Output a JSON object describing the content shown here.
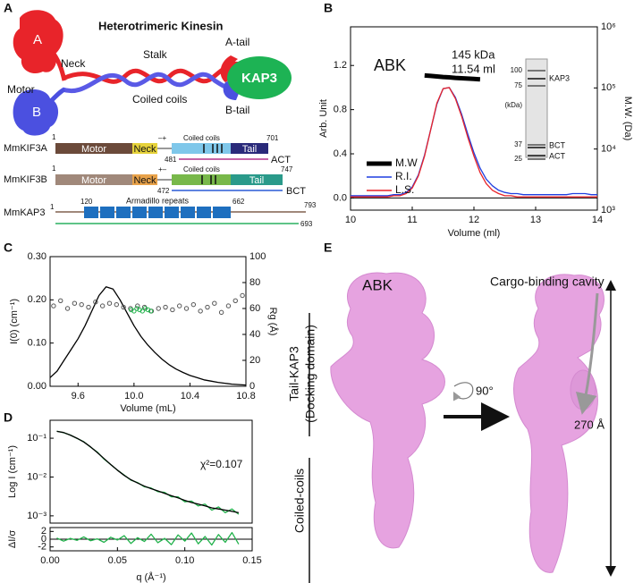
{
  "panel_labels": [
    "A",
    "B",
    "C",
    "D",
    "E"
  ],
  "panel_a": {
    "title": "Heterotrimeric Kinesin",
    "subunit_a": "A",
    "subunit_b": "B",
    "kap3": "KAP3",
    "a_tail": "A-tail",
    "b_tail": "B-tail",
    "motor": "Motor",
    "neck": "Neck",
    "stalk": "Stalk",
    "coiled_coils": "Coiled coils",
    "rows": [
      {
        "name": "MmKIF3A",
        "start": 1,
        "motor": "Motor",
        "neck": "Neck",
        "charge": "–+",
        "coiled": "Coiled coils",
        "tail": "Tail",
        "end": 701,
        "fragment_start": 481,
        "fragment": "ACT"
      },
      {
        "name": "MmKIF3B",
        "start": 1,
        "motor": "Motor",
        "neck": "Neck",
        "charge": "+–",
        "coiled": "Coiled coils",
        "tail": "Tail",
        "end": 747,
        "fragment_start": 472,
        "fragment": "BCT"
      },
      {
        "name": "MmKAP3",
        "start": 1,
        "repeat_start": 120,
        "repeats": "Armadillo repeats",
        "repeat_end": 662,
        "end": 793,
        "fragment_end": 693
      }
    ]
  },
  "gel": {
    "unit": "(kDa)",
    "markers": [
      100,
      75,
      37,
      25
    ],
    "bands": [
      "KAP3",
      "BCT",
      "ACT"
    ]
  },
  "chart_data": [
    {
      "type": "line",
      "x_label": "Volume (ml)",
      "y_label": "Arb. Unit",
      "y2_label": "M.W. (Da)",
      "annotations": [
        "ABK",
        "145 kDa",
        "11.54 ml"
      ],
      "legend": "left",
      "xlim": [
        10,
        14
      ],
      "xticks": [
        10,
        11,
        12,
        13,
        14
      ],
      "ylim": [
        -0.11,
        1.55
      ],
      "yticks": [
        {
          "value": 0,
          "label": "0.0"
        },
        0.4,
        0.8,
        1.2
      ],
      "y2lim": [
        1000,
        1000000
      ],
      "y2log": true,
      "y2ticks": [
        {
          "value": 1000,
          "label": "10³"
        },
        {
          "value": 10000,
          "label": "10⁴"
        },
        {
          "value": 100000,
          "label": "10⁵"
        },
        {
          "value": 1000000,
          "label": "10⁶"
        }
      ],
      "x": [
        10.0,
        10.1,
        10.2,
        10.3,
        10.4,
        10.5,
        10.6,
        10.7,
        10.8,
        10.9,
        11.0,
        11.1,
        11.2,
        11.3,
        11.4,
        11.5,
        11.6,
        11.7,
        11.8,
        11.9,
        12.0,
        12.1,
        12.2,
        12.3,
        12.4,
        12.5,
        12.6,
        12.7,
        12.8,
        12.9,
        13.0,
        13.1,
        13.2,
        13.3,
        13.4,
        13.5,
        13.6,
        13.7,
        13.8,
        13.9,
        14.0
      ],
      "series": [
        {
          "name": "M.W",
          "color": "#000000",
          "axis": "y2",
          "values": [
            null,
            null,
            null,
            null,
            null,
            null,
            null,
            null,
            null,
            null,
            null,
            null,
            160000,
            157000,
            154000,
            151000,
            149000,
            146000,
            144000,
            142000,
            140000,
            138000,
            null,
            null,
            null,
            null,
            null,
            null,
            null,
            null,
            null,
            null,
            null,
            null,
            null,
            null,
            null,
            null,
            null,
            null,
            null
          ]
        },
        {
          "name": "R.I.",
          "color": "#1f3fe0",
          "values": [
            0.02,
            0.02,
            0.02,
            0.02,
            0.02,
            0.02,
            0.02,
            0.03,
            0.03,
            0.05,
            0.1,
            0.21,
            0.39,
            0.62,
            0.85,
            0.99,
            1.0,
            0.91,
            0.76,
            0.58,
            0.41,
            0.27,
            0.17,
            0.11,
            0.07,
            0.05,
            0.04,
            0.04,
            0.03,
            0.03,
            0.03,
            0.03,
            0.03,
            0.03,
            0.03,
            0.03,
            0.04,
            0.04,
            0.04,
            0.03,
            0.03
          ]
        },
        {
          "name": "L.S.",
          "color": "#e8242a",
          "values": [
            0.01,
            0.01,
            0.01,
            0.01,
            0.01,
            0.01,
            0.01,
            0.02,
            0.02,
            0.04,
            0.09,
            0.2,
            0.38,
            0.62,
            0.86,
            0.99,
            1.0,
            0.9,
            0.74,
            0.55,
            0.38,
            0.23,
            0.13,
            0.07,
            0.04,
            0.02,
            0.02,
            0.01,
            0.01,
            0.01,
            0.01,
            0.01,
            0.01,
            0.01,
            0.01,
            0.01,
            0.01,
            0.01,
            0.01,
            0.01,
            0.01
          ]
        }
      ]
    },
    {
      "type": "line",
      "x_label": "Volume (mL)",
      "y_label": "I(0) (cm⁻¹)",
      "y2_label": "Rg (Å)",
      "xlim": [
        9.4,
        10.8
      ],
      "xticks": [
        9.6,
        {
          "value": 10,
          "label": "10.0"
        },
        10.4,
        10.8
      ],
      "ylim": [
        0,
        0.3
      ],
      "yticks": [
        {
          "value": 0,
          "label": "0.00"
        },
        {
          "value": 0.1,
          "label": "0.10"
        },
        {
          "value": 0.2,
          "label": "0.20"
        },
        {
          "value": 0.3,
          "label": "0.30"
        }
      ],
      "y2lim": [
        0,
        100
      ],
      "y2ticks": [
        0,
        20,
        40,
        60,
        80,
        100
      ],
      "x": [
        9.4,
        9.45,
        9.5,
        9.55,
        9.6,
        9.65,
        9.7,
        9.75,
        9.8,
        9.85,
        9.9,
        9.95,
        10.0,
        10.05,
        10.1,
        10.15,
        10.2,
        10.25,
        10.3,
        10.35,
        10.4,
        10.45,
        10.5,
        10.55,
        10.6,
        10.65,
        10.7,
        10.75,
        10.8
      ],
      "series": [
        {
          "color": "#000000",
          "values": [
            0.02,
            0.035,
            0.06,
            0.085,
            0.11,
            0.14,
            0.175,
            0.21,
            0.23,
            0.225,
            0.2,
            0.17,
            0.14,
            0.115,
            0.095,
            0.078,
            0.063,
            0.05,
            0.04,
            0.032,
            0.025,
            0.02,
            0.015,
            0.012,
            0.009,
            0.007,
            0.005,
            0.004,
            0.003
          ]
        },
        {
          "type": "scatter",
          "color": "#555555",
          "axis": "y2",
          "x": [
            9.425,
            9.475,
            9.525,
            9.575,
            9.625,
            9.675,
            9.725,
            9.775,
            9.825,
            9.875,
            9.925,
            9.975,
            10.025,
            10.075,
            10.125,
            10.175,
            10.225,
            10.275,
            10.325,
            10.375,
            10.425,
            10.475,
            10.525,
            10.575,
            10.625,
            10.675,
            10.725,
            10.775
          ],
          "values": [
            62,
            66,
            60,
            64,
            63,
            61,
            65,
            62,
            64,
            63,
            61,
            60,
            62,
            61,
            58,
            60,
            61,
            59,
            62,
            60,
            63,
            58,
            61,
            64,
            57,
            62,
            66,
            70
          ]
        },
        {
          "type": "scatter",
          "color": "#22b24c",
          "axis": "y2",
          "x": [
            9.98,
            10.0,
            10.02,
            10.04,
            10.06,
            10.08,
            10.1,
            10.12
          ],
          "values": [
            59,
            58,
            60,
            59,
            58,
            60,
            59,
            58
          ]
        }
      ]
    },
    {
      "type": "line",
      "y_label": "Log I (cm⁻¹)",
      "annotations": [
        "χ²=0.107"
      ],
      "xlim": [
        0,
        0.15
      ],
      "ylim": [
        0.00065,
        0.29
      ],
      "ylog": true,
      "yticks": [
        {
          "value": 0.1,
          "label": "10⁻¹"
        },
        {
          "value": 0.01,
          "label": "10⁻²"
        },
        {
          "value": 0.001,
          "label": "10⁻³"
        }
      ],
      "x": [
        0.005,
        0.01,
        0.015,
        0.02,
        0.025,
        0.03,
        0.035,
        0.04,
        0.045,
        0.05,
        0.055,
        0.06,
        0.065,
        0.07,
        0.075,
        0.08,
        0.085,
        0.09,
        0.095,
        0.1,
        0.105,
        0.11,
        0.115,
        0.12,
        0.125,
        0.13,
        0.135,
        0.14
      ],
      "series": [
        {
          "color": "#22b24c",
          "values": [
            0.152,
            0.139,
            0.121,
            0.099,
            0.081,
            0.059,
            0.044,
            0.029,
            0.021,
            0.015,
            0.0112,
            0.0083,
            0.0072,
            0.0056,
            0.0052,
            0.0042,
            0.004,
            0.0031,
            0.0031,
            0.0023,
            0.0024,
            0.0018,
            0.002,
            0.0014,
            0.0017,
            0.0012,
            0.0015,
            0.0011
          ]
        },
        {
          "color": "#000000",
          "values": [
            0.15,
            0.14,
            0.12,
            0.1,
            0.08,
            0.06,
            0.043,
            0.03,
            0.021,
            0.015,
            0.011,
            0.0085,
            0.007,
            0.0058,
            0.005,
            0.0044,
            0.0038,
            0.0033,
            0.0029,
            0.0025,
            0.0022,
            0.002,
            0.0018,
            0.0016,
            0.0015,
            0.0014,
            0.0013,
            0.0012
          ]
        }
      ]
    },
    {
      "type": "line",
      "x_label": "q (Å⁻¹)",
      "y_label": "ΔI/σ",
      "xlim": [
        0,
        0.15
      ],
      "xticks": [
        {
          "value": 0,
          "label": "0.00"
        },
        0.05,
        {
          "value": 0.1,
          "label": "0.10"
        },
        0.15
      ],
      "ylim": [
        -3,
        3
      ],
      "yticks": [
        2,
        0,
        -2
      ],
      "x": [
        0.005,
        0.01,
        0.015,
        0.02,
        0.025,
        0.03,
        0.035,
        0.04,
        0.045,
        0.05,
        0.055,
        0.06,
        0.065,
        0.07,
        0.075,
        0.08,
        0.085,
        0.09,
        0.095,
        0.1,
        0.105,
        0.11,
        0.115,
        0.12,
        0.125,
        0.13,
        0.135,
        0.14
      ],
      "series": [
        {
          "color": "#22b24c",
          "values": [
            0.3,
            -0.5,
            0.2,
            -0.3,
            0.6,
            -0.4,
            0.1,
            -0.8,
            0.5,
            -0.2,
            0.9,
            -1.1,
            0.4,
            -0.6,
            1.3,
            -0.9,
            0.2,
            -1.4,
            1.1,
            -0.5,
            1.6,
            -1.2,
            0.7,
            -1.5,
            1.2,
            -0.8,
            1.7,
            -1.3
          ]
        }
      ]
    }
  ],
  "panel_e": {
    "title": "ABK",
    "cavity": "Cargo-binding cavity",
    "docking": "Tail-KAP3",
    "docking_sub": "(Docking domain)",
    "coiled": "Coiled-coils",
    "rotation": "90°",
    "length": "270 Å"
  }
}
